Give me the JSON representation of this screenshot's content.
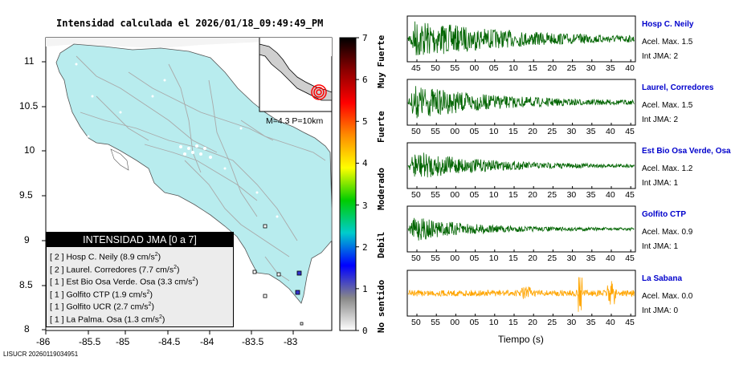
{
  "map": {
    "title": "Intensidad calculada el 2026/01/18_09:49:49_PM",
    "x_ticks": [
      "-86",
      "-85.5",
      "-85",
      "-84.5",
      "-84",
      "-83.5",
      "-83"
    ],
    "y_ticks": [
      "11",
      "10.5",
      "10",
      "9.5",
      "9",
      "8.5",
      "8"
    ],
    "inset_label": "M=4.3 P=10km",
    "footer_id": "LISUCR 20260119034951"
  },
  "legend": {
    "title": "INTENSIDAD JMA [0 a 7]",
    "rows": [
      {
        "jma": "[ 2 ]",
        "text": "Hosp C. Neily (8.9 cm/s",
        "unit_sup": "2",
        "tail": ")"
      },
      {
        "jma": "[ 2 ]",
        "text": "Laurel. Corredores (7.7 cm/s",
        "unit_sup": "2",
        "tail": ")"
      },
      {
        "jma": "[ 1 ]",
        "text": "Est Bio Osa Verde. Osa (3.3 cm/s",
        "unit_sup": "2",
        "tail": ")"
      },
      {
        "jma": "[ 1 ]",
        "text": "Golfito CTP (1.9 cm/s",
        "unit_sup": "2",
        "tail": ")"
      },
      {
        "jma": "[ 1 ]",
        "text": "Golfito UCR (2.7 cm/s",
        "unit_sup": "2",
        "tail": ")"
      },
      {
        "jma": "[ 1 ]",
        "text": "La Palma. Osa (1.3 cm/s",
        "unit_sup": "2",
        "tail": ")"
      }
    ]
  },
  "colorbar": {
    "ticks": [
      "7",
      "6",
      "5",
      "4",
      "3",
      "2",
      "1",
      "0"
    ],
    "categories": [
      "Muy Fuerte",
      "Fuerte",
      "Moderado",
      "Debil",
      "No sentido"
    ],
    "colors": [
      "#000000",
      "#8b0000",
      "#ff0000",
      "#ff8c00",
      "#ffff00",
      "#00cc00",
      "#00cccc",
      "#0000ff",
      "#888888",
      "#ffffff"
    ]
  },
  "chart_data": {
    "type": "line",
    "xlabel": "Tiempo (s)",
    "x_tick_labels": [
      "50",
      "55",
      "00",
      "05",
      "10",
      "15",
      "20",
      "25",
      "30",
      "35",
      "40",
      "45"
    ],
    "series": [
      {
        "name": "Hosp C. Neily",
        "accel_label": "Acel. Max. 1.5",
        "jma_label": "Int JMA: 2",
        "peak_accel": 1.5,
        "jma": 2,
        "color": "#006400",
        "tick_labels": [
          "45",
          "50",
          "55",
          "00",
          "05",
          "10",
          "15",
          "20",
          "25",
          "30",
          "35",
          "40"
        ]
      },
      {
        "name": "Laurel, Corredores",
        "accel_label": "Acel. Max. 1.5",
        "jma_label": "Int JMA: 2",
        "peak_accel": 1.5,
        "jma": 2,
        "color": "#006400",
        "tick_labels": [
          "50",
          "55",
          "00",
          "05",
          "10",
          "15",
          "20",
          "25",
          "30",
          "35",
          "40",
          "45"
        ]
      },
      {
        "name": "Est Bio Osa Verde, Osa",
        "accel_label": "Acel. Max. 1.2",
        "jma_label": "Int JMA: 1",
        "peak_accel": 1.2,
        "jma": 1,
        "color": "#006400",
        "tick_labels": [
          "50",
          "55",
          "00",
          "05",
          "10",
          "15",
          "20",
          "25",
          "30",
          "35",
          "40",
          "45"
        ]
      },
      {
        "name": "Golfito CTP",
        "accel_label": "Acel. Max. 0.9",
        "jma_label": "Int JMA: 1",
        "peak_accel": 0.9,
        "jma": 1,
        "color": "#006400",
        "tick_labels": [
          "50",
          "55",
          "00",
          "05",
          "10",
          "15",
          "20",
          "25",
          "30",
          "35",
          "40",
          "45"
        ]
      },
      {
        "name": "La Sabana",
        "accel_label": "Acel. Max. 0.0",
        "jma_label": "Int JMA: 0",
        "peak_accel": 0.0,
        "jma": 0,
        "color": "#ffa500",
        "tick_labels": [
          "50",
          "55",
          "00",
          "05",
          "10",
          "15",
          "20",
          "25",
          "30",
          "35",
          "40",
          "45"
        ]
      }
    ]
  }
}
